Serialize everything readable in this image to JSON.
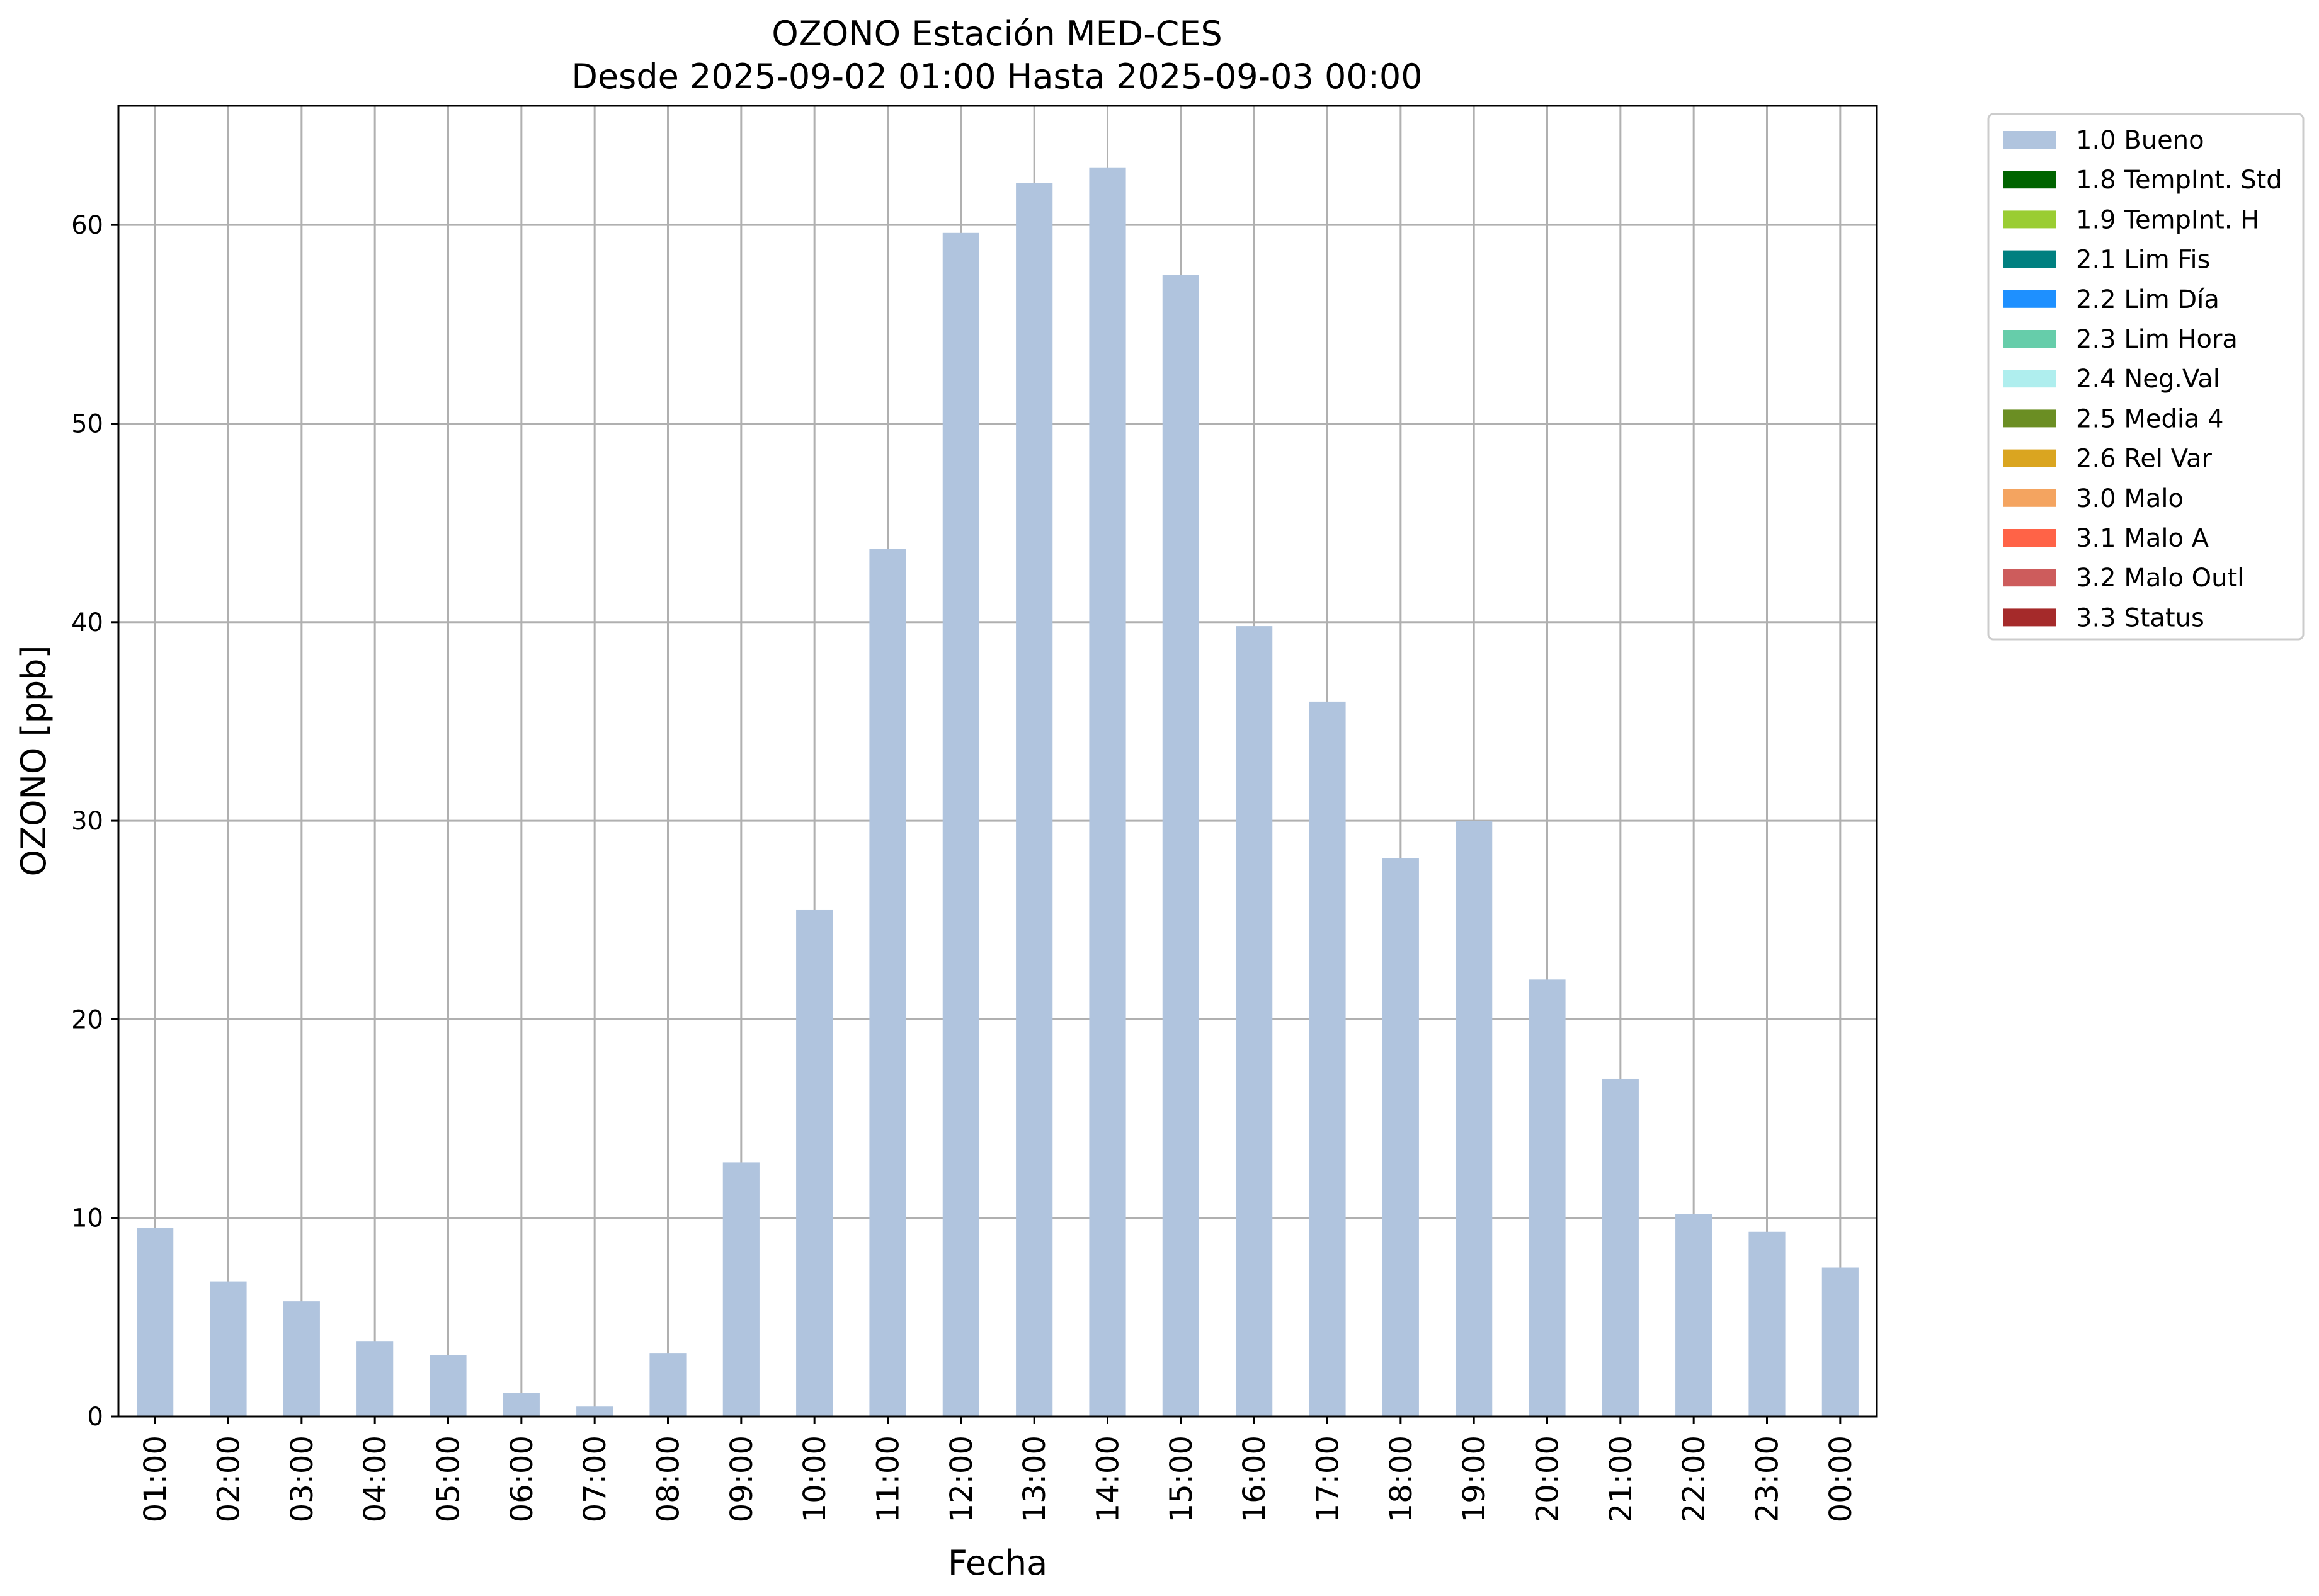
{
  "chart_data": {
    "type": "bar",
    "title": "OZONO Estación MED-CES",
    "subtitle": "Desde 2025-09-02 01:00 Hasta 2025-09-03 00:00",
    "xlabel": "Fecha",
    "ylabel": "OZONO [ppb]",
    "ylim": [
      0,
      66
    ],
    "yticks": [
      0,
      10,
      20,
      30,
      40,
      50,
      60
    ],
    "grid": true,
    "legend_position": "outside-top-right",
    "categories": [
      "01:00",
      "02:00",
      "03:00",
      "04:00",
      "05:00",
      "06:00",
      "07:00",
      "08:00",
      "09:00",
      "10:00",
      "11:00",
      "12:00",
      "13:00",
      "14:00",
      "15:00",
      "16:00",
      "17:00",
      "18:00",
      "19:00",
      "20:00",
      "21:00",
      "22:00",
      "23:00",
      "00:00"
    ],
    "series": [
      {
        "name": "1.0 Bueno",
        "color": "#b0c4de",
        "values": [
          9.5,
          6.8,
          5.8,
          3.8,
          3.1,
          1.2,
          0.5,
          3.2,
          12.8,
          25.5,
          43.7,
          59.6,
          62.1,
          62.9,
          57.5,
          39.8,
          36.0,
          28.1,
          30.0,
          22.0,
          17.0,
          10.2,
          9.3,
          7.5
        ]
      }
    ],
    "legend": [
      {
        "label": "1.0 Bueno",
        "color": "#b0c4de"
      },
      {
        "label": "1.8 TempInt. Std",
        "color": "#006400"
      },
      {
        "label": "1.9 TempInt. H",
        "color": "#9acd32"
      },
      {
        "label": "2.1 Lim Fis",
        "color": "#008080"
      },
      {
        "label": "2.2 Lim Día",
        "color": "#1e90ff"
      },
      {
        "label": "2.3 Lim Hora",
        "color": "#66cdaa"
      },
      {
        "label": "2.4 Neg.Val",
        "color": "#afeeee"
      },
      {
        "label": "2.5 Media 4",
        "color": "#6b8e23"
      },
      {
        "label": "2.6 Rel Var",
        "color": "#daa520"
      },
      {
        "label": "3.0 Malo",
        "color": "#f4a460"
      },
      {
        "label": "3.1 Malo A",
        "color": "#ff6347"
      },
      {
        "label": "3.2 Malo Outl",
        "color": "#cd5c5c"
      },
      {
        "label": "3.3 Status",
        "color": "#a52a2a"
      }
    ]
  }
}
